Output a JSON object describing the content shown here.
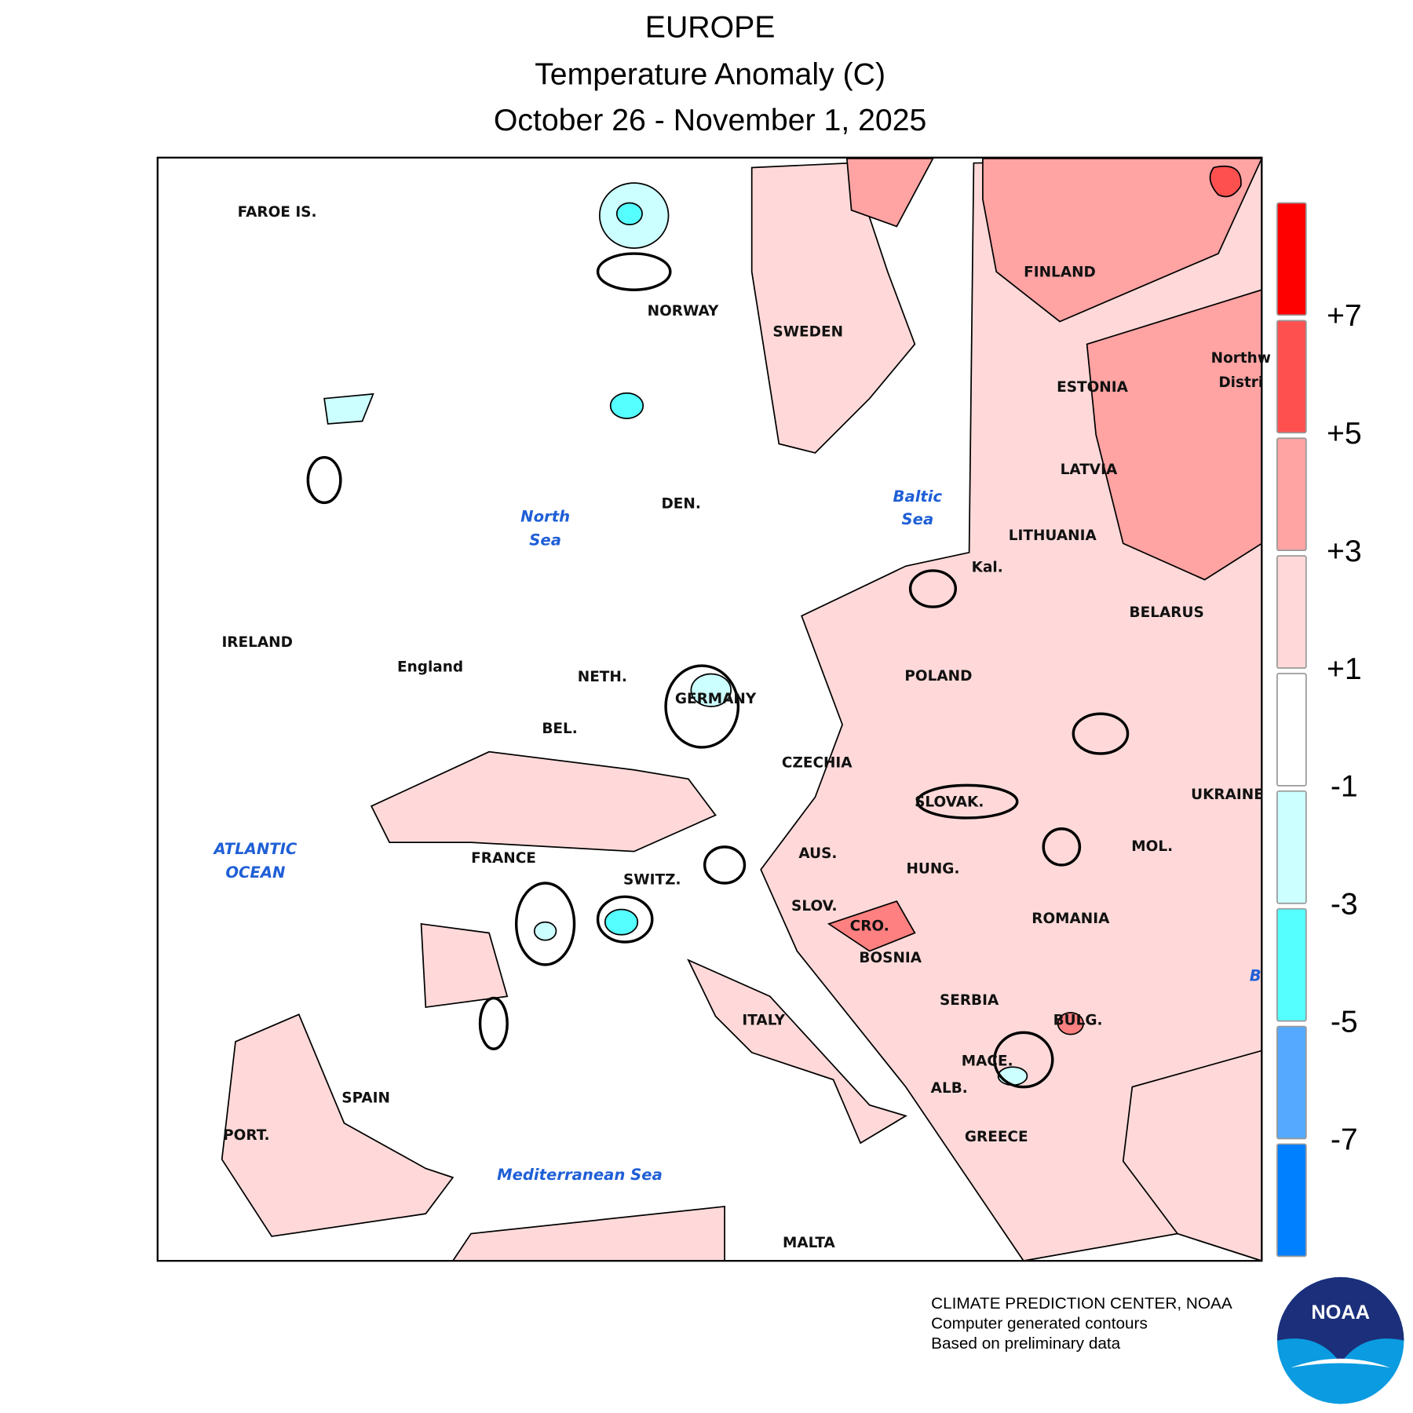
{
  "header": {
    "title": "EUROPE",
    "subtitle": "Temperature Anomaly (C)",
    "dates": "October 26 - November 1, 2025"
  },
  "map": {
    "labels": [
      "FAROE IS.",
      "NORWAY",
      "SWEDEN",
      "FINLAND",
      "ESTONIA",
      "LATVIA",
      "LITHUANIA",
      "Kal.",
      "BELARUS",
      "Northw",
      "Distri",
      "DEN.",
      "IRELAND",
      "England",
      "NETH.",
      "POLAND",
      "GERMANY",
      "BEL.",
      "CZECHIA",
      "UKRAINE",
      "SLOVAK.",
      "FRANCE",
      "AUS.",
      "MOL.",
      "HUNG.",
      "SWITZ.",
      "SLOV.",
      "ROMANIA",
      "CRO.",
      "BOSNIA",
      "SERBIA",
      "ITALY",
      "BULG.",
      "MACE.",
      "ALB.",
      "SPAIN",
      "PORT.",
      "GREECE",
      "MALTA"
    ],
    "seas": [
      "North",
      "Sea",
      "Baltic",
      "Sea",
      "ATLANTIC",
      "OCEAN",
      "Mediterranean Sea",
      "B"
    ]
  },
  "legend": {
    "colors": [
      "#ff0000",
      "#ff5050",
      "#ffa3a3",
      "#ffd9d9",
      "#ffffff",
      "#ccffff",
      "#55ffff",
      "#55aaff",
      "#0080ff"
    ],
    "ticks": [
      "+7",
      "+5",
      "+3",
      "+1",
      "-1",
      "-3",
      "-5",
      "-7"
    ]
  },
  "footer": {
    "lines": [
      "CLIMATE PREDICTION CENTER, NOAA",
      "Computer generated contours",
      "Based on preliminary data"
    ],
    "logo": "NOAA"
  }
}
